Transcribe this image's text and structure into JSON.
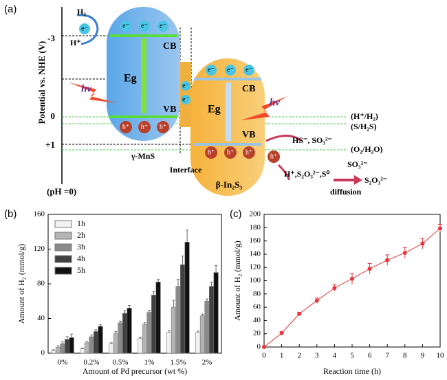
{
  "diagram": {
    "panel_label": "(a)",
    "axis_label": "Potential vs. NHE (V)",
    "ticks": [
      "-3",
      "0",
      "+1"
    ],
    "ph": "(pH =0)",
    "h2": "H₂",
    "hplus": "H⁺",
    "electron": "e⁻",
    "hole": "h⁺",
    "cb": "CB",
    "vb": "VB",
    "eg": "Eg",
    "hv": "hν",
    "mns": "γ-MnS",
    "interface": "Interface",
    "in2s3": "β-In₂S₃",
    "levels": [
      "(H⁺/H₂)",
      "(S/H₂S)",
      "(O₂/H₂O)"
    ],
    "reactant": "HS⁻, SO₃²⁻",
    "product": "H⁺,S₂O₃²⁻,S⁰",
    "so3": "SO₃²⁻",
    "diffusion": "diffusion",
    "s2o3": "S₂O₃²⁻"
  },
  "chart_data": [
    {
      "type": "bar",
      "panel_label": "(b)",
      "ylabel": "Amount of H₂ (mmol/g)",
      "xlabel": "Amount of Pd precursor (wt %)",
      "categories": [
        "0%",
        "0.2%",
        "0.5%",
        "1%",
        "1.5%",
        "2%"
      ],
      "series": [
        {
          "name": "1h",
          "color": "#f2f2f2",
          "values": [
            3,
            5,
            11,
            17,
            24,
            24
          ],
          "errors": [
            1,
            1,
            1,
            1.5,
            2,
            1.5
          ]
        },
        {
          "name": "2h",
          "color": "#b4b4b4",
          "values": [
            7,
            12,
            23,
            33,
            53,
            43
          ],
          "errors": [
            1.5,
            1.5,
            2,
            2,
            8,
            2
          ]
        },
        {
          "name": "3h",
          "color": "#8a8a8a",
          "values": [
            11,
            19,
            35,
            47,
            77,
            60
          ],
          "errors": [
            2,
            2,
            2,
            2.5,
            8,
            2.5
          ]
        },
        {
          "name": "4h",
          "color": "#404040",
          "values": [
            16,
            25,
            46,
            67,
            102,
            77
          ],
          "errors": [
            3,
            2,
            3,
            4,
            10,
            5
          ]
        },
        {
          "name": "5h",
          "color": "#111111",
          "values": [
            18,
            31,
            52,
            82,
            128,
            93
          ],
          "errors": [
            4,
            2,
            3,
            3,
            14,
            8
          ]
        }
      ],
      "ylim": [
        0,
        160
      ],
      "yticks": [
        0,
        40,
        80,
        120,
        160
      ],
      "legend": "upper left"
    },
    {
      "type": "line",
      "panel_label": "(c)",
      "ylabel": "Amount of H₂ (mmol/g)",
      "xlabel": "Reaction time (h)",
      "x": [
        0,
        1,
        2,
        3,
        4,
        5,
        6,
        7,
        8,
        9,
        10
      ],
      "values": [
        0,
        21,
        50,
        70,
        89,
        103,
        118,
        131,
        142,
        156,
        179
      ],
      "errors": [
        1,
        2,
        2,
        4,
        5,
        8,
        8,
        8,
        8,
        8,
        6
      ],
      "color": "#e8343a",
      "xlim": [
        0,
        10
      ],
      "xticks": [
        0,
        1,
        2,
        3,
        4,
        5,
        6,
        7,
        8,
        9,
        10
      ],
      "ylim": [
        0,
        200
      ],
      "yticks": [
        0,
        20,
        40,
        60,
        80,
        100,
        120,
        140,
        160,
        180,
        200
      ]
    }
  ]
}
